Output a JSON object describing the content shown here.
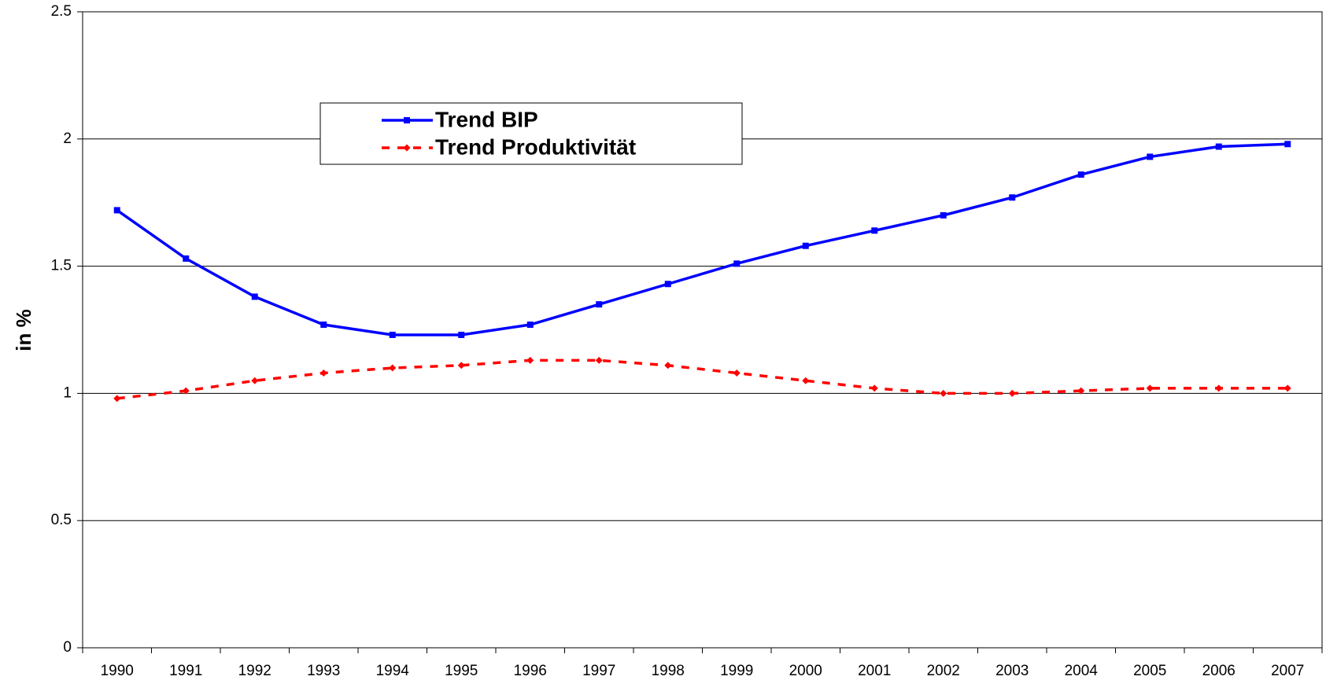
{
  "chart_data": {
    "type": "line",
    "y_label": "in %",
    "categories": [
      "1990",
      "1991",
      "1992",
      "1993",
      "1994",
      "1995",
      "1996",
      "1997",
      "1998",
      "1999",
      "2000",
      "2001",
      "2002",
      "2003",
      "2004",
      "2005",
      "2006",
      "2007"
    ],
    "series": [
      {
        "name": "Trend BIP",
        "color": "#0000ff",
        "dash": false,
        "marker": "square",
        "values": [
          1.72,
          1.53,
          1.38,
          1.27,
          1.23,
          1.23,
          1.27,
          1.35,
          1.43,
          1.51,
          1.58,
          1.64,
          1.7,
          1.77,
          1.86,
          1.93,
          1.97,
          1.98
        ]
      },
      {
        "name": "Trend Produktivität",
        "color": "#ff0000",
        "dash": true,
        "marker": "diamond",
        "values": [
          0.98,
          1.01,
          1.05,
          1.08,
          1.1,
          1.11,
          1.13,
          1.13,
          1.11,
          1.08,
          1.05,
          1.02,
          1.0,
          1.0,
          1.01,
          1.02,
          1.02,
          1.02
        ]
      }
    ],
    "ylim": [
      0,
      2.5
    ],
    "yticks": [
      0,
      0.5,
      1,
      1.5,
      2,
      2.5
    ],
    "grid": true
  }
}
